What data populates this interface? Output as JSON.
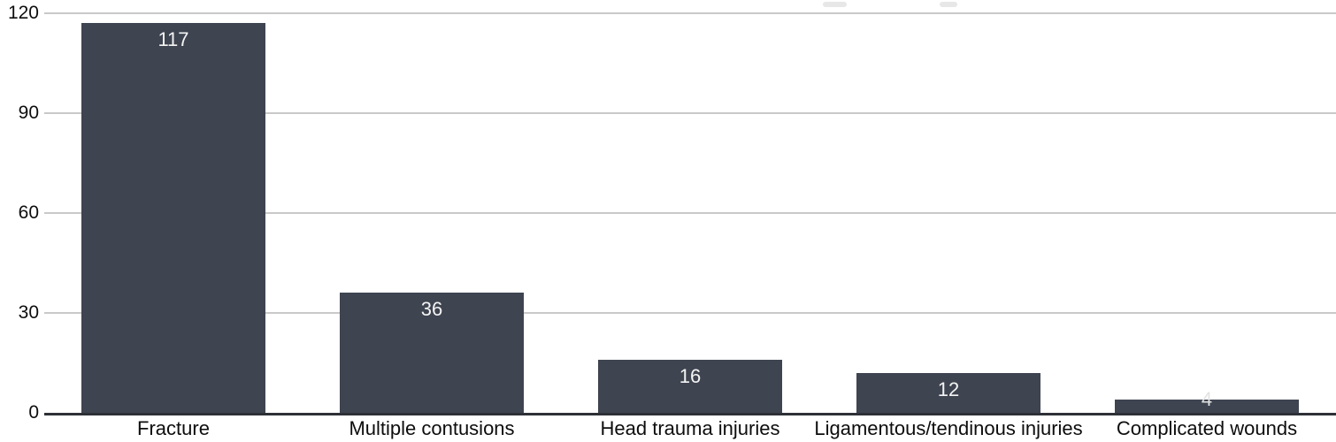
{
  "chart_data": {
    "type": "bar",
    "title": "",
    "categories": [
      "Fracture",
      "Multiple contusions",
      "Head trauma injuries",
      "Ligamentous/tendinous injuries",
      "Complicated wounds"
    ],
    "values": [
      117,
      36,
      16,
      12,
      4
    ],
    "value_labels": [
      "117",
      "36",
      "16",
      "12",
      "4"
    ],
    "yticks": [
      "0",
      "30",
      "60",
      "90",
      "120"
    ],
    "ytick_values": [
      0,
      30,
      60,
      90,
      120
    ],
    "ylim": [
      0,
      120
    ],
    "xlabel": "",
    "ylabel": "",
    "grid": "horizontal",
    "legend": "none",
    "bar_color": "#3e4450",
    "value_label_color": "#f4f4f4",
    "value_label_color_small_bar": "#e3e3e3",
    "gridline_color": "#c9c9c9",
    "axis_line_color": "#2d3036",
    "text_color": "#0d0d0d"
  },
  "artifacts": {
    "note_color": "#e7e7e7"
  }
}
